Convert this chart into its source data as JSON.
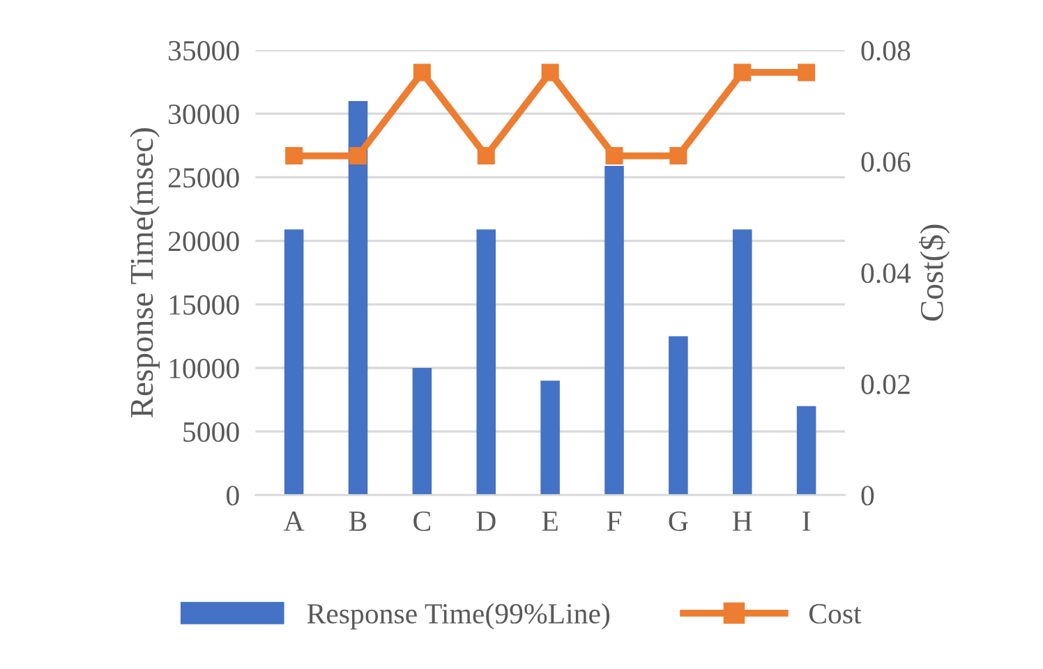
{
  "chart_data": {
    "type": "bar",
    "categories": [
      "A",
      "B",
      "C",
      "D",
      "E",
      "F",
      "G",
      "H",
      "I"
    ],
    "series": [
      {
        "name": "Response Time(99%Line)",
        "type": "bar",
        "color": "#4472c4",
        "values": [
          20900,
          31000,
          10000,
          20900,
          9000,
          25900,
          12500,
          20900,
          7000
        ]
      },
      {
        "name": "Cost",
        "type": "line",
        "axis": "y2",
        "color": "#ed7d31",
        "marker": "square",
        "values": [
          0.061,
          0.061,
          0.076,
          0.061,
          0.076,
          0.061,
          0.061,
          0.076,
          0.076
        ]
      }
    ],
    "ylabel": "Response Time(msec)",
    "y2label": "Cost($)",
    "ylim": [
      0,
      35000
    ],
    "yticks": [
      0,
      5000,
      10000,
      15000,
      20000,
      25000,
      30000,
      35000
    ],
    "y2lim": [
      0,
      0.08
    ],
    "y2ticks": [
      {
        "value": 0,
        "label": "0"
      },
      0.02,
      0.04,
      0.06,
      0.08
    ],
    "grid": "y",
    "legend": "bottom"
  }
}
